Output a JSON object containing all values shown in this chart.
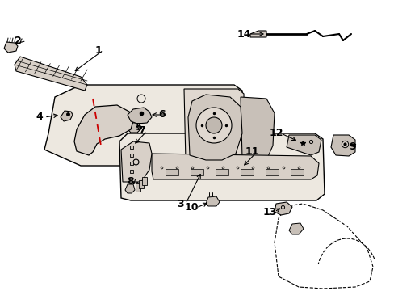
{
  "background_color": "#ffffff",
  "figsize": [
    4.89,
    3.6
  ],
  "dpi": 100,
  "line_color": "#000000",
  "red_line_color": "#cc0000",
  "panel_fill": "#ede8e0",
  "part_fill": "#d0c8c0",
  "part_fill2": "#c0b8b0"
}
